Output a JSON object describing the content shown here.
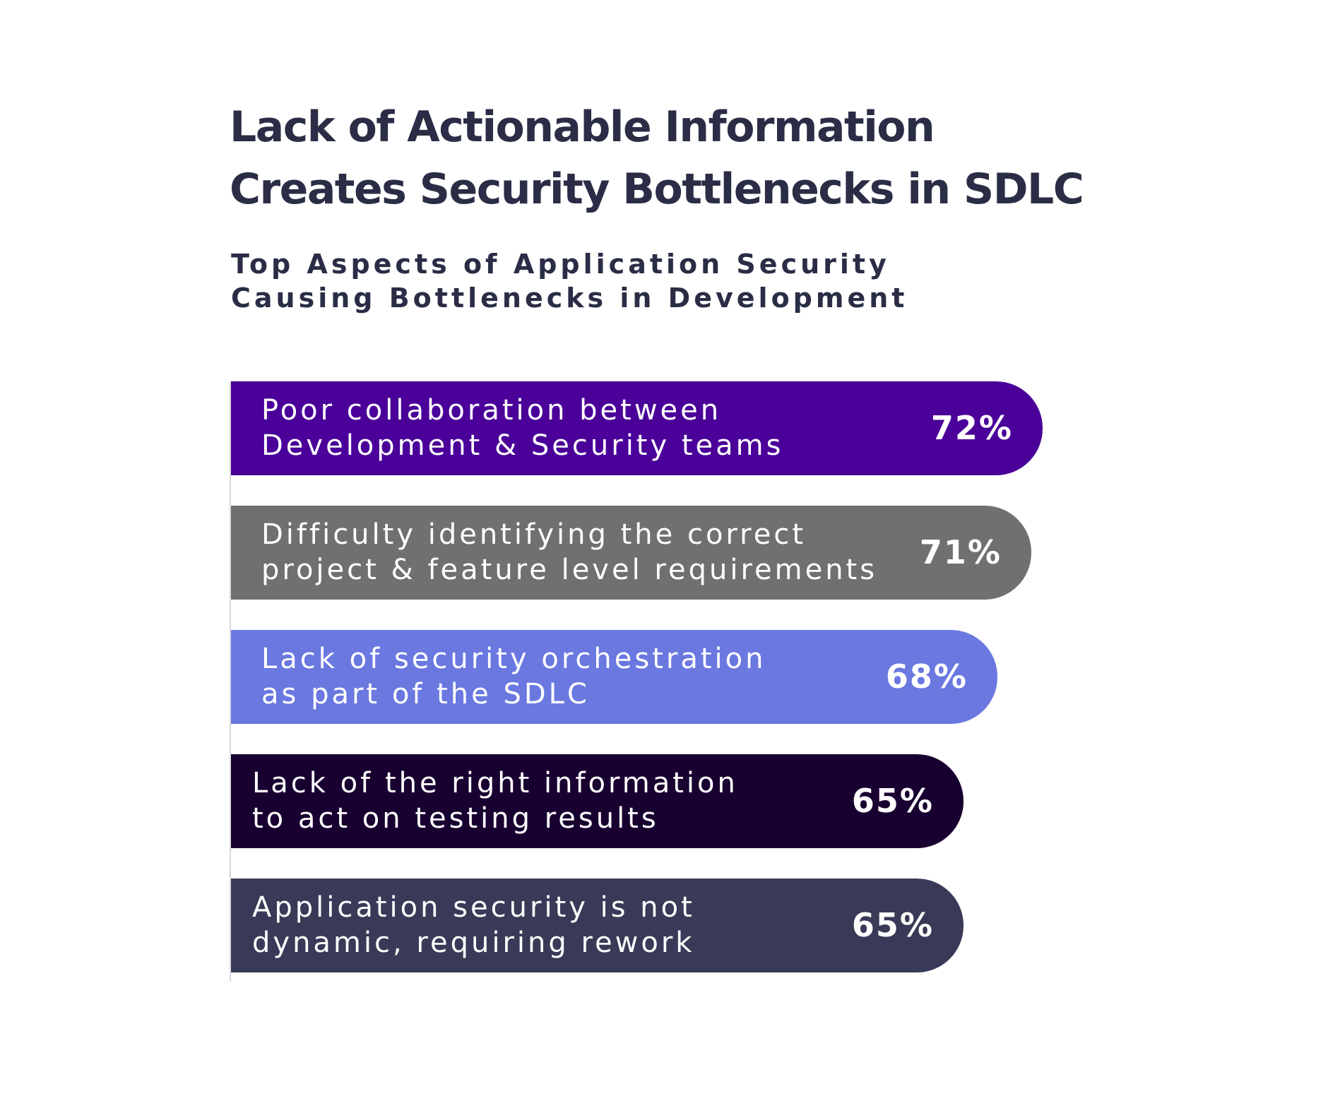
{
  "title": {
    "line1": "Lack of Actionable Information",
    "line2": "Creates Security Bottlenecks in SDLC"
  },
  "subtitle": {
    "line1": "Top Aspects of Application Security",
    "line2": "Causing Bottlenecks in Development"
  },
  "chart_data": {
    "type": "bar",
    "orientation": "horizontal",
    "title": "Lack of Actionable Information Creates Security Bottlenecks in SDLC",
    "subtitle": "Top Aspects of Application Security Causing Bottlenecks in Development",
    "unit": "%",
    "grid": false,
    "legend": "none",
    "categories": [
      "Poor collaboration between Development & Security teams",
      "Difficulty identifying the correct project & feature level requirements",
      "Lack of security orchestration as part of the SDLC",
      "Lack of the right information to act on testing results",
      "Application security is not dynamic, requiring rework"
    ],
    "values": [
      72,
      71,
      68,
      65,
      65
    ],
    "bars": [
      {
        "label_lines": [
          "Poor collaboration between",
          "Development & Security teams"
        ],
        "value": 72,
        "value_label": "72%",
        "color": "#4a0099"
      },
      {
        "label_lines": [
          "Difficulty identifying the correct",
          "project & feature level requirements"
        ],
        "value": 71,
        "value_label": "71%",
        "color": "#707070"
      },
      {
        "label_lines": [
          "Lack of security orchestration",
          "as part of the SDLC"
        ],
        "value": 68,
        "value_label": "68%",
        "color": "#6a78e0"
      },
      {
        "label_lines": [
          "Lack of the right information",
          "to act on testing results"
        ],
        "value": 65,
        "value_label": "65%",
        "color": "#180030"
      },
      {
        "label_lines": [
          "Application security is not",
          "dynamic, requiring rework"
        ],
        "value": 65,
        "value_label": "65%",
        "color": "#393a57"
      }
    ]
  }
}
